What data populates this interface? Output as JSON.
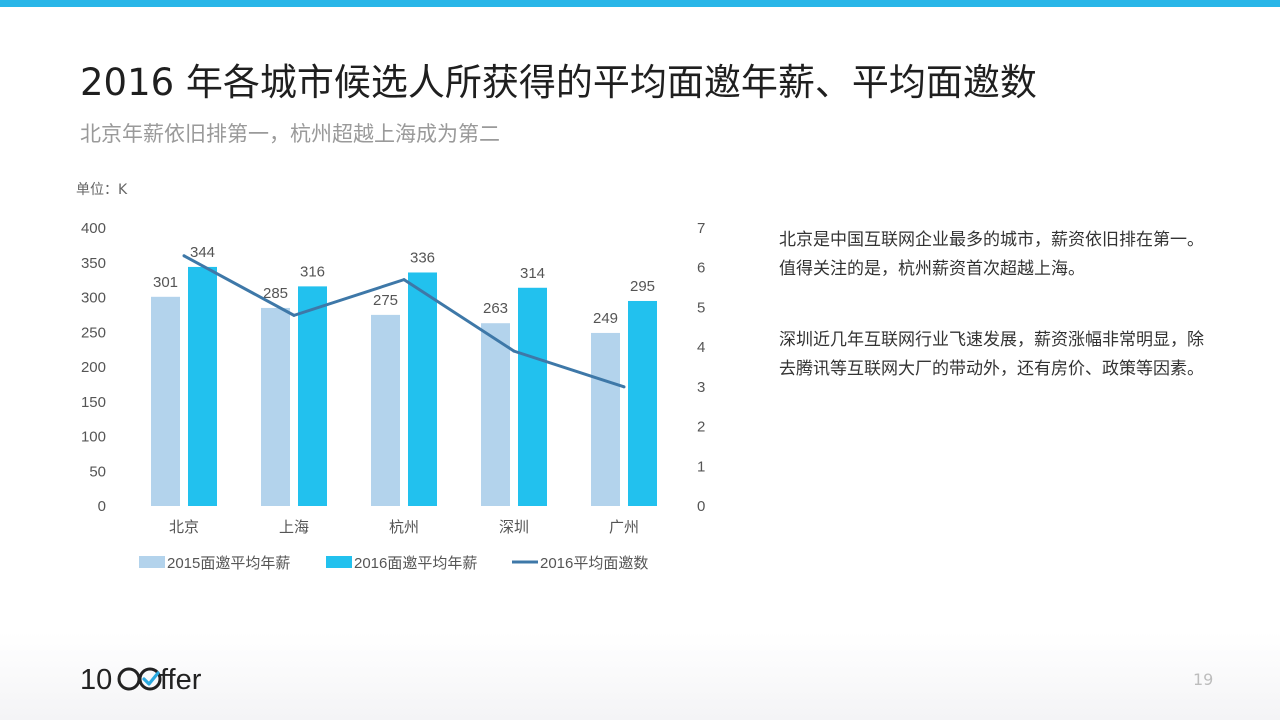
{
  "title": "2016 年各城市候选人所获得的平均面邀年薪、平均面邀数",
  "subtitle": "北京年薪依旧排第一，杭州超越上海成为第二",
  "unit_label": "单位：K",
  "description": {
    "paragraph1": "北京是中国互联网企业最多的城市，薪资依旧排在第一。值得关注的是，杭州薪资首次超越上海。",
    "paragraph2": "深圳近几年互联网行业飞速发展，薪资涨幅非常明显，除去腾讯等互联网大厂的带动外，还有房价、政策等因素。"
  },
  "logo": {
    "text_left": "10",
    "text_right": "ffer"
  },
  "page_number": "19",
  "colors": {
    "accent_bar": "#29b6e8",
    "series_2015": "#b3d3ec",
    "series_2016": "#22c1ee",
    "series_line": "#3e78a8",
    "logo_check": "#2aa9e0"
  },
  "chart_data": {
    "type": "bar",
    "categories": [
      "北京",
      "上海",
      "杭州",
      "深圳",
      "广州"
    ],
    "series": [
      {
        "name": "2015面邀平均年薪",
        "type": "bar",
        "axis": "left",
        "values": [
          301,
          285,
          275,
          263,
          249
        ]
      },
      {
        "name": "2016面邀平均年薪",
        "type": "bar",
        "axis": "left",
        "values": [
          344,
          316,
          336,
          314,
          295
        ]
      },
      {
        "name": "2016平均面邀数",
        "type": "line",
        "axis": "right",
        "values": [
          6.3,
          4.8,
          5.7,
          3.9,
          3.0
        ]
      }
    ],
    "y_left": {
      "range": [
        0,
        400
      ],
      "ticks": [
        "0",
        "50",
        "100",
        "150",
        "200",
        "250",
        "300",
        "350",
        "400"
      ]
    },
    "y_right": {
      "range": [
        0,
        7
      ],
      "ticks": [
        "0",
        "1",
        "2",
        "3",
        "4",
        "5",
        "6",
        "7"
      ]
    },
    "data_labels": true,
    "grid": false,
    "legend_position": "bottom"
  }
}
